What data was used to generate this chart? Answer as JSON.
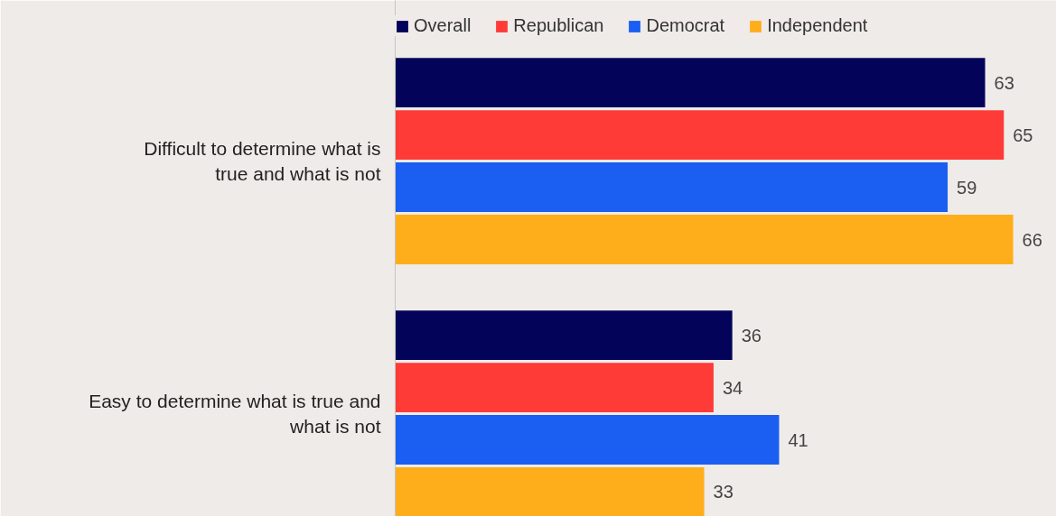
{
  "chart_data": {
    "type": "bar",
    "orientation": "horizontal",
    "categories": [
      "Difficult to determine what is true and what is not",
      "Easy to determine what is true and what is not"
    ],
    "series": [
      {
        "name": "Overall",
        "color": "#03035a",
        "values": [
          63,
          36
        ]
      },
      {
        "name": "Republican",
        "color": "#fe3b37",
        "values": [
          65,
          34
        ]
      },
      {
        "name": "Democrat",
        "color": "#1a5ef2",
        "values": [
          59,
          41
        ]
      },
      {
        "name": "Independent",
        "color": "#feae1b",
        "values": [
          66,
          33
        ]
      }
    ],
    "data_labels": true,
    "legend": "top",
    "grid": false
  }
}
